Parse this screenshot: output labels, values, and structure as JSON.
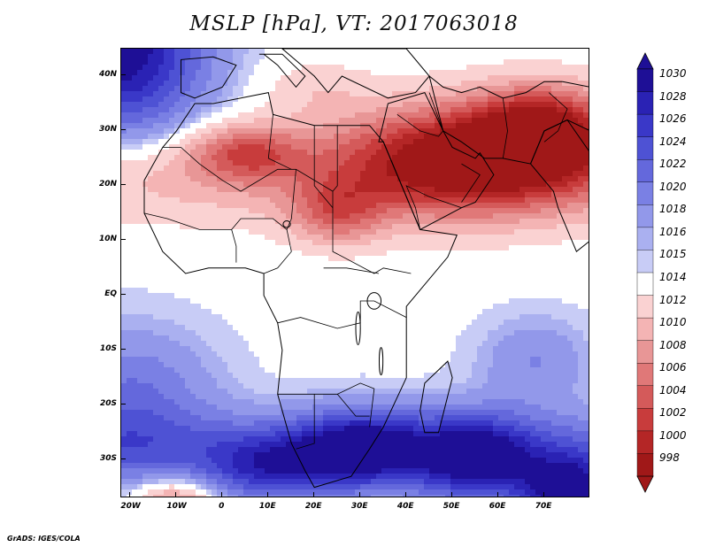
{
  "title": "MSLP [hPa], VT: 2017063018",
  "credit": "GrADS: IGES/COLA",
  "map": {
    "variable": "Mean sea level pressure",
    "units": "hPa",
    "valid_time": "2017063018",
    "lon_range": [
      -22,
      80
    ],
    "lat_range": [
      -37,
      45
    ],
    "lon_ticks": [
      {
        "value": -20,
        "label": "20W"
      },
      {
        "value": -10,
        "label": "10W"
      },
      {
        "value": 0,
        "label": "0"
      },
      {
        "value": 10,
        "label": "10E"
      },
      {
        "value": 20,
        "label": "20E"
      },
      {
        "value": 30,
        "label": "30E"
      },
      {
        "value": 40,
        "label": "40E"
      },
      {
        "value": 50,
        "label": "50E"
      },
      {
        "value": 60,
        "label": "60E"
      },
      {
        "value": 70,
        "label": "70E"
      }
    ],
    "lat_ticks": [
      {
        "value": 40,
        "label": "40N"
      },
      {
        "value": 30,
        "label": "30N"
      },
      {
        "value": 20,
        "label": "20N"
      },
      {
        "value": 10,
        "label": "10N"
      },
      {
        "value": 0,
        "label": "EQ"
      },
      {
        "value": -10,
        "label": "10S"
      },
      {
        "value": -20,
        "label": "20S"
      },
      {
        "value": -30,
        "label": "30S"
      }
    ]
  },
  "colorbar": {
    "levels": [
      "1030",
      "1028",
      "1026",
      "1024",
      "1022",
      "1020",
      "1018",
      "1016",
      "1015",
      "1014",
      "1012",
      "1010",
      "1008",
      "1006",
      "1004",
      "1002",
      "1000",
      "998"
    ],
    "colors": [
      "#1e0f96",
      "#2a22b4",
      "#3a38c8",
      "#4e52d4",
      "#6468dc",
      "#7a80e4",
      "#9298ea",
      "#aab0f0",
      "#c8ccf6",
      "#ffffff",
      "#fad2d2",
      "#f4b4b4",
      "#e89696",
      "#e07878",
      "#d45a5a",
      "#c83c3c",
      "#b42626",
      "#a01818"
    ]
  },
  "field": {
    "base": 1013.5,
    "features": [
      {
        "type": "high",
        "lon": -22,
        "lat": 45,
        "value": 1030,
        "rlon": 18,
        "rlat": 16
      },
      {
        "type": "high",
        "lon": 30,
        "lat": -28,
        "value": 1026,
        "rlon": 14,
        "rlat": 7
      },
      {
        "type": "high",
        "lon": 10,
        "lat": -32,
        "value": 1022,
        "rlon": 14,
        "rlat": 6
      },
      {
        "type": "high",
        "lon": 55,
        "lat": -30,
        "value": 1026,
        "rlon": 13,
        "rlat": 8
      },
      {
        "type": "high",
        "lon": 75,
        "lat": -36,
        "value": 1030,
        "rlon": 10,
        "rlat": 6
      },
      {
        "type": "high",
        "lon": -20,
        "lat": -18,
        "value": 1020,
        "rlon": 18,
        "rlat": 12
      },
      {
        "type": "high",
        "lon": 68,
        "lat": -12,
        "value": 1018,
        "rlon": 12,
        "rlat": 8
      },
      {
        "type": "low",
        "lon": -10,
        "lat": -37,
        "value": 1006,
        "rlon": 9,
        "rlat": 4
      },
      {
        "type": "low",
        "lon": 52,
        "lat": 25,
        "value": 998,
        "rlon": 26,
        "rlat": 10
      },
      {
        "type": "low",
        "lon": 70,
        "lat": 30,
        "value": 999,
        "rlon": 15,
        "rlat": 8
      },
      {
        "type": "low",
        "lon": 5,
        "lat": 26,
        "value": 1005,
        "rlon": 12,
        "rlat": 5
      },
      {
        "type": "low",
        "lon": 25,
        "lat": 15,
        "value": 1006,
        "rlon": 10,
        "rlat": 6
      },
      {
        "type": "low",
        "lon": 20,
        "lat": 38,
        "value": 1011,
        "rlon": 12,
        "rlat": 5
      }
    ]
  },
  "regions": [
    {
      "name": "Africa",
      "outline": [
        [
          -17,
          21
        ],
        [
          -13,
          27
        ],
        [
          -10,
          30
        ],
        [
          -6,
          35
        ],
        [
          -2,
          35
        ],
        [
          10,
          37
        ],
        [
          11,
          33
        ],
        [
          20,
          31
        ],
        [
          32,
          31
        ],
        [
          35,
          28
        ],
        [
          43,
          12
        ],
        [
          51,
          11
        ],
        [
          49,
          7
        ],
        [
          40,
          -2
        ],
        [
          40,
          -10
        ],
        [
          40,
          -15
        ],
        [
          35,
          -24
        ],
        [
          32,
          -28
        ],
        [
          28,
          -33
        ],
        [
          20,
          -35
        ],
        [
          18,
          -32
        ],
        [
          15,
          -27
        ],
        [
          12,
          -18
        ],
        [
          13,
          -10
        ],
        [
          12,
          -5
        ],
        [
          9,
          0
        ],
        [
          9,
          4
        ],
        [
          5,
          5
        ],
        [
          -3,
          5
        ],
        [
          -8,
          4
        ],
        [
          -13,
          8
        ],
        [
          -17,
          15
        ]
      ]
    },
    {
      "name": "Arabia",
      "outline": [
        [
          34,
          28
        ],
        [
          36,
          35
        ],
        [
          44,
          37
        ],
        [
          48,
          30
        ],
        [
          50,
          27
        ],
        [
          55,
          25
        ],
        [
          56,
          26
        ],
        [
          59,
          22
        ],
        [
          55,
          17
        ],
        [
          52,
          16
        ],
        [
          43,
          12
        ],
        [
          39,
          20
        ],
        [
          35,
          28
        ]
      ]
    },
    {
      "name": "Madagascar",
      "outline": [
        [
          49,
          -12
        ],
        [
          50,
          -15
        ],
        [
          47,
          -25
        ],
        [
          44,
          -25
        ],
        [
          43,
          -21
        ],
        [
          44,
          -16
        ]
      ]
    },
    {
      "name": "Iberia",
      "outline": [
        [
          -9,
          43
        ],
        [
          -9,
          37
        ],
        [
          -6,
          36
        ],
        [
          0,
          38
        ],
        [
          3,
          42
        ],
        [
          -2,
          43.5
        ]
      ]
    },
    {
      "name": "Italy",
      "outline": [
        [
          8,
          44
        ],
        [
          13,
          44
        ],
        [
          18,
          40
        ],
        [
          16,
          38
        ],
        [
          12,
          42
        ],
        [
          9,
          44
        ]
      ]
    },
    {
      "name": "Balkans-Turkey",
      "outline": [
        [
          13,
          45
        ],
        [
          20,
          40
        ],
        [
          23,
          37
        ],
        [
          26,
          40
        ],
        [
          36,
          36
        ],
        [
          42,
          37
        ],
        [
          45,
          40
        ],
        [
          40,
          45
        ],
        [
          28,
          45
        ]
      ]
    },
    {
      "name": "India",
      "outline": [
        [
          67,
          24
        ],
        [
          70,
          21
        ],
        [
          72,
          19
        ],
        [
          73,
          16
        ],
        [
          77,
          8
        ],
        [
          80,
          10
        ],
        [
          80,
          20
        ],
        [
          80,
          26
        ],
        [
          75,
          32
        ],
        [
          70,
          30
        ]
      ]
    },
    {
      "name": "Iran-Central Asia",
      "outline": [
        [
          45,
          40
        ],
        [
          48,
          38
        ],
        [
          52,
          37
        ],
        [
          56,
          38
        ],
        [
          61,
          36
        ],
        [
          66,
          37
        ],
        [
          70,
          39
        ],
        [
          74,
          39
        ],
        [
          80,
          38
        ],
        [
          80,
          30
        ],
        [
          75,
          32
        ],
        [
          70,
          30
        ],
        [
          67,
          24
        ],
        [
          61,
          25
        ],
        [
          57,
          25
        ],
        [
          52,
          28
        ],
        [
          48,
          30
        ]
      ]
    }
  ],
  "borders": [
    [
      [
        -13,
        27
      ],
      [
        -9,
        27
      ],
      [
        -5,
        24
      ],
      [
        0,
        21
      ],
      [
        4,
        19
      ],
      [
        12,
        23
      ],
      [
        16,
        23
      ],
      [
        24,
        19
      ],
      [
        24,
        8
      ],
      [
        33,
        4
      ],
      [
        35,
        5
      ],
      [
        41,
        4
      ]
    ],
    [
      [
        11,
        33
      ],
      [
        10,
        25
      ],
      [
        15,
        23
      ]
    ],
    [
      [
        25,
        31
      ],
      [
        25,
        20
      ],
      [
        24,
        19
      ]
    ],
    [
      [
        20,
        31
      ],
      [
        20,
        20
      ],
      [
        24,
        16
      ]
    ],
    [
      [
        16,
        23
      ],
      [
        15,
        14
      ],
      [
        14,
        12
      ],
      [
        15,
        8
      ],
      [
        12,
        5
      ],
      [
        9,
        4
      ]
    ],
    [
      [
        -17,
        15
      ],
      [
        -12,
        14
      ],
      [
        -5,
        12
      ],
      [
        2,
        12
      ],
      [
        4,
        14
      ],
      [
        11,
        14
      ],
      [
        14,
        12
      ]
    ],
    [
      [
        2,
        12
      ],
      [
        3,
        9
      ],
      [
        3,
        6
      ]
    ],
    [
      [
        22,
        5
      ],
      [
        27,
        5
      ],
      [
        34,
        4
      ]
    ],
    [
      [
        12,
        -5
      ],
      [
        17,
        -4
      ],
      [
        25,
        -6
      ],
      [
        30,
        -5
      ],
      [
        30,
        -1
      ],
      [
        33,
        -1
      ],
      [
        40,
        -4
      ]
    ],
    [
      [
        12,
        -18
      ],
      [
        20,
        -18
      ],
      [
        25,
        -18
      ],
      [
        30,
        -16
      ],
      [
        33,
        -17
      ],
      [
        32,
        -24
      ]
    ],
    [
      [
        20,
        -18
      ],
      [
        20,
        -27
      ],
      [
        16,
        -28
      ]
    ],
    [
      [
        25,
        -18
      ],
      [
        29,
        -22
      ],
      [
        32,
        -22
      ]
    ],
    [
      [
        43,
        12
      ],
      [
        42,
        16
      ],
      [
        40,
        20
      ],
      [
        45,
        18
      ],
      [
        52,
        16
      ]
    ],
    [
      [
        52,
        17
      ],
      [
        56,
        22
      ],
      [
        52,
        24
      ]
    ],
    [
      [
        38,
        33
      ],
      [
        43,
        30
      ],
      [
        47,
        29
      ],
      [
        48,
        30
      ]
    ],
    [
      [
        45,
        37
      ],
      [
        48,
        30
      ]
    ],
    [
      [
        61,
        25
      ],
      [
        62,
        30
      ],
      [
        61,
        36
      ]
    ],
    [
      [
        71,
        37
      ],
      [
        75,
        34
      ],
      [
        73,
        30
      ],
      [
        70,
        28
      ]
    ]
  ],
  "lakes": [
    {
      "name": "Lake Victoria",
      "lon": 33,
      "lat": -1,
      "rlon": 1.5,
      "rlat": 1.5
    },
    {
      "name": "Lake Tanganyika",
      "lon": 29.5,
      "lat": -6,
      "rlon": 0.5,
      "rlat": 3
    },
    {
      "name": "Lake Malawi",
      "lon": 34.5,
      "lat": -12,
      "rlon": 0.4,
      "rlat": 2.5
    },
    {
      "name": "Lake Chad",
      "lon": 14,
      "lat": 13,
      "rlon": 0.8,
      "rlat": 0.6
    }
  ]
}
